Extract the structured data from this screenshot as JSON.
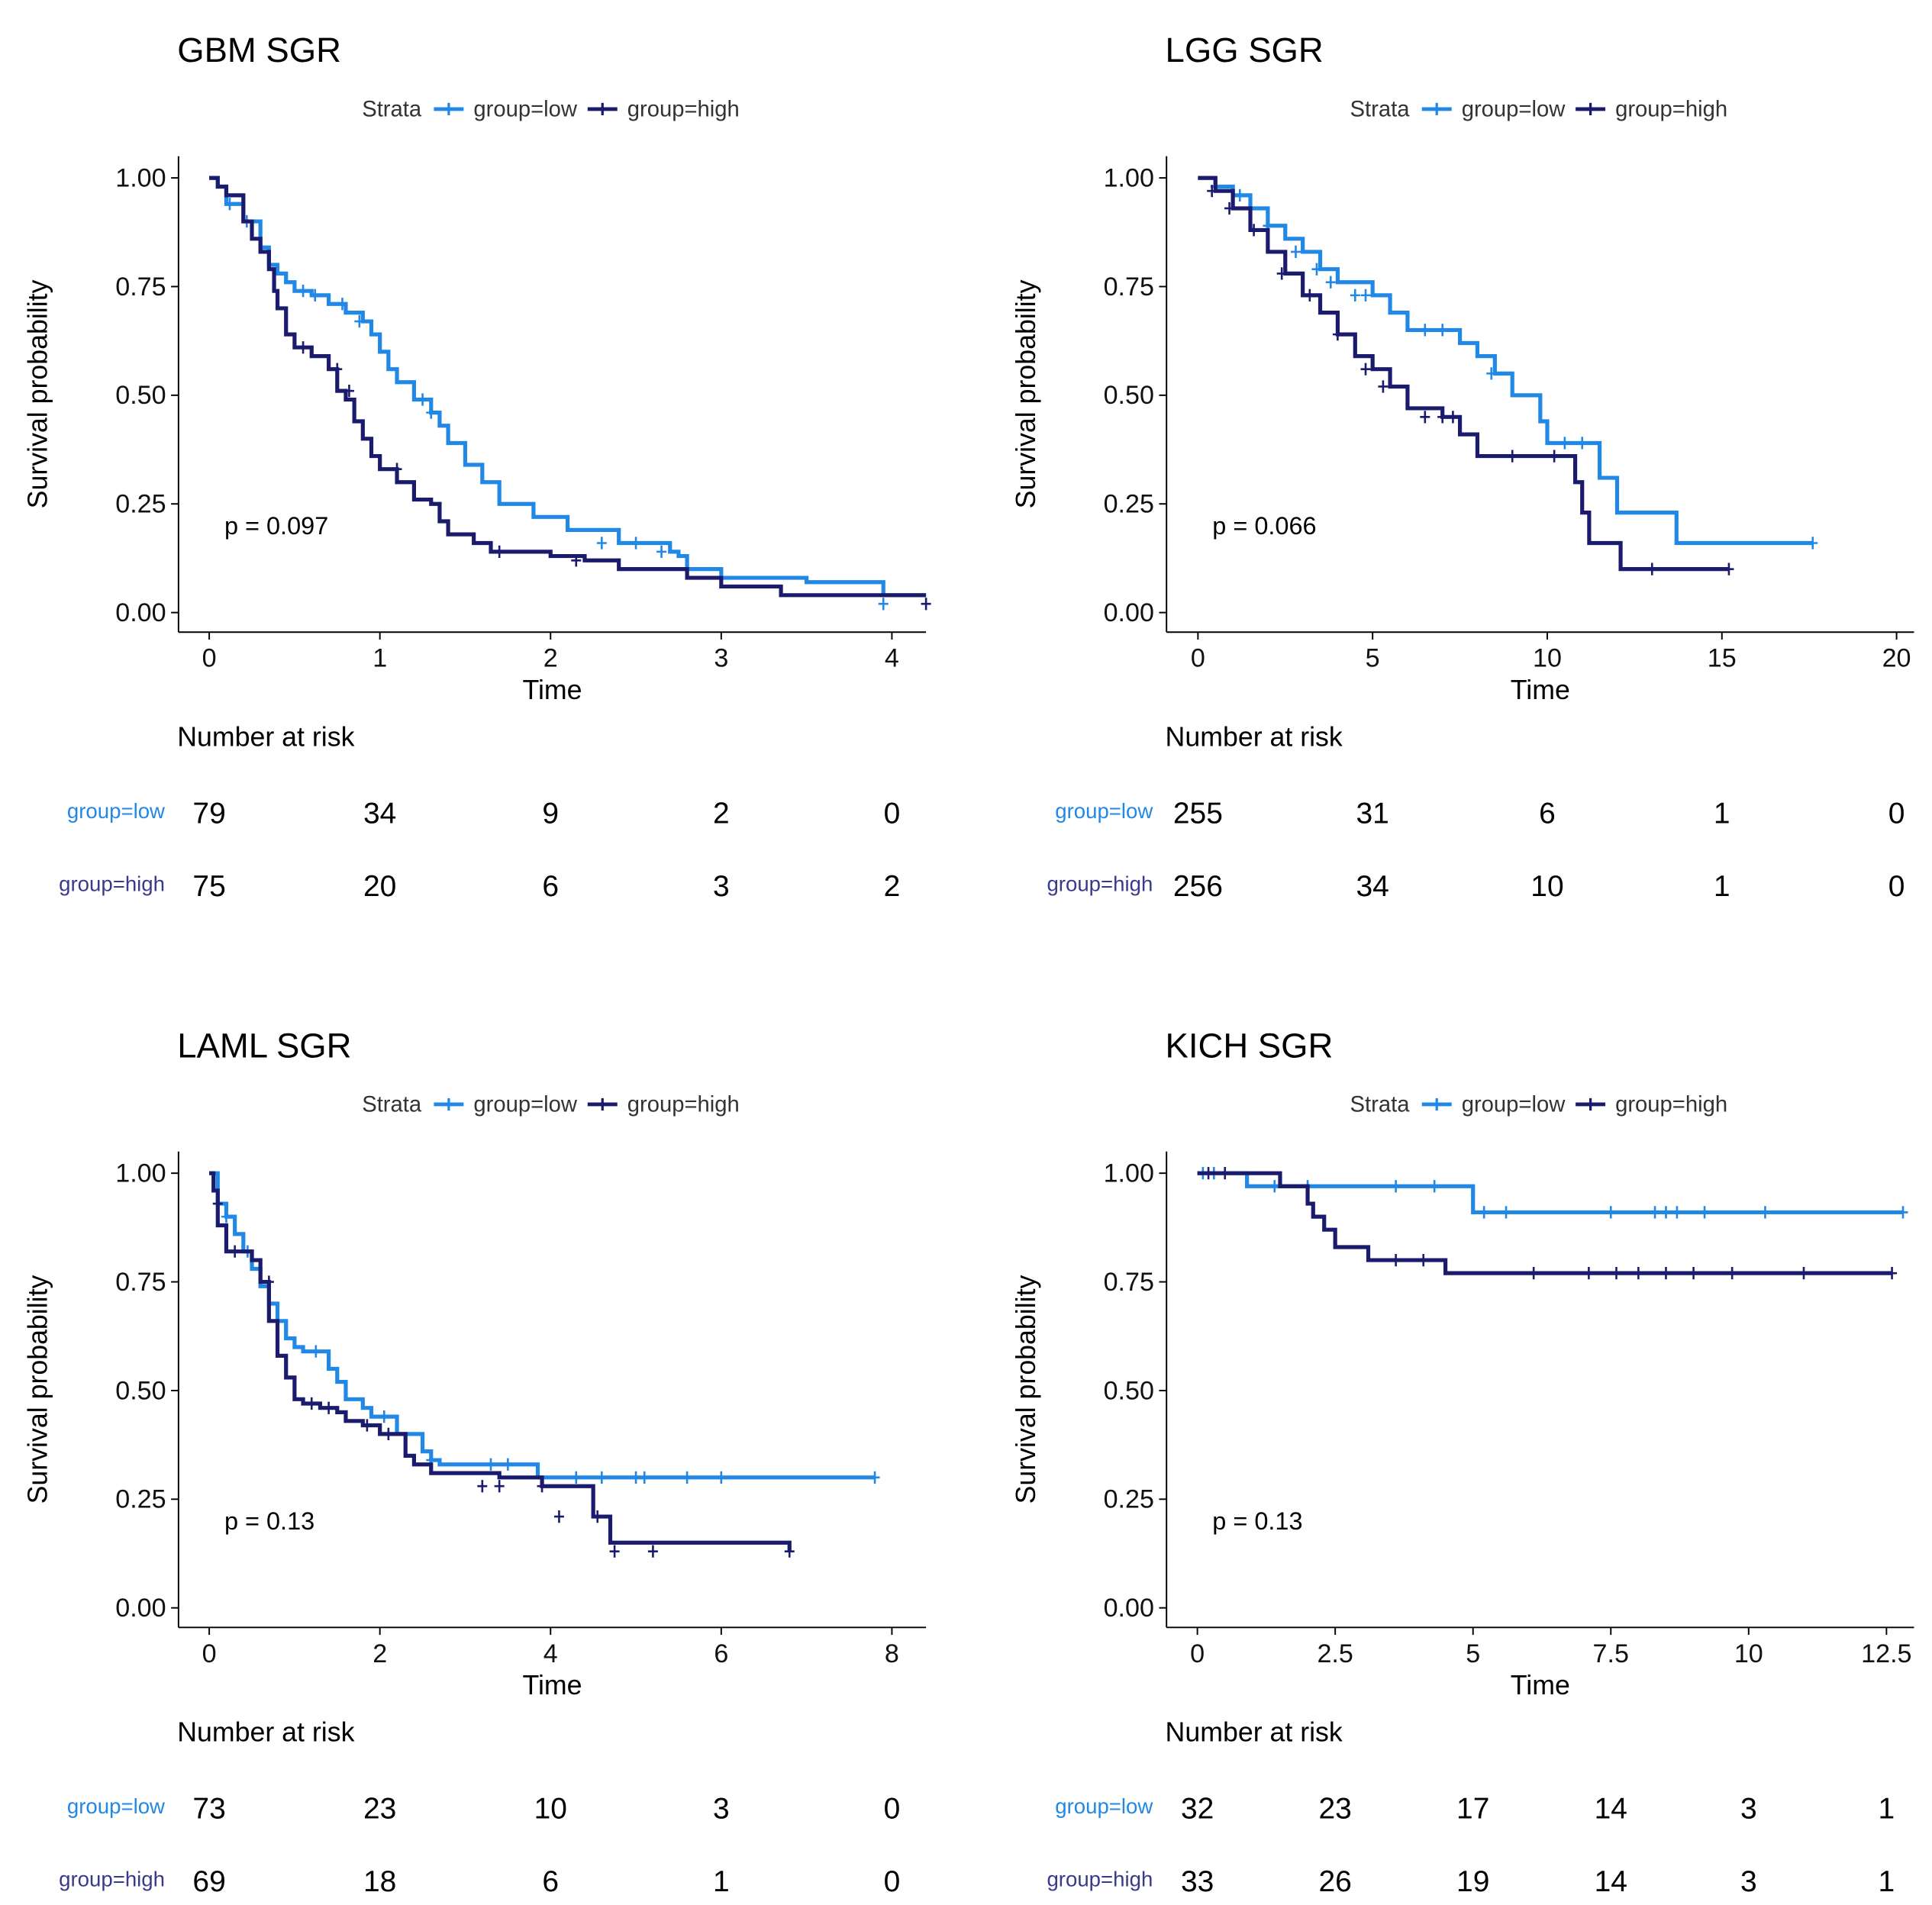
{
  "colors": {
    "low": "#2288E6",
    "high": "#1B1B6E",
    "axis": "#000000"
  },
  "legend": {
    "title": "Strata",
    "labels": [
      "group=low",
      "group=high"
    ]
  },
  "chart_data": [
    {
      "type": "line",
      "title": "GBM SGR",
      "xlabel": "Time",
      "ylabel": "Survival probability",
      "xlim": [
        -0.18,
        4.2
      ],
      "ylim": [
        -0.045,
        1.05
      ],
      "xticks": [
        0,
        1,
        2,
        3,
        4
      ],
      "yticks": [
        "0.00",
        "0.25",
        "0.50",
        "0.75",
        "1.00"
      ],
      "pvalue": "p = 0.097",
      "risk_table": {
        "title": "Number at risk",
        "times": [
          0,
          1,
          2,
          3,
          4
        ],
        "rows": [
          {
            "label": "group=low",
            "values": [
              "79",
              "34",
              "9",
              "2",
              "0"
            ]
          },
          {
            "label": "group=high",
            "values": [
              "75",
              "20",
              "6",
              "3",
              "2"
            ]
          }
        ]
      },
      "series": [
        {
          "name": "group=low",
          "x": [
            0,
            0.05,
            0.1,
            0.2,
            0.3,
            0.35,
            0.4,
            0.45,
            0.5,
            0.6,
            0.7,
            0.8,
            0.9,
            0.95,
            1.0,
            1.05,
            1.1,
            1.2,
            1.3,
            1.35,
            1.4,
            1.5,
            1.6,
            1.7,
            1.9,
            2.1,
            2.4,
            2.7,
            2.75,
            2.8,
            3.0,
            3.5,
            3.9,
            3.95,
            4.2
          ],
          "y": [
            1.0,
            0.98,
            0.94,
            0.9,
            0.84,
            0.8,
            0.78,
            0.76,
            0.74,
            0.73,
            0.71,
            0.69,
            0.67,
            0.64,
            0.6,
            0.56,
            0.53,
            0.49,
            0.46,
            0.43,
            0.39,
            0.34,
            0.3,
            0.25,
            0.22,
            0.19,
            0.16,
            0.14,
            0.13,
            0.1,
            0.08,
            0.07,
            0.07,
            0.04,
            0.04
          ],
          "censor_x": [
            0.12,
            0.22,
            0.55,
            0.62,
            0.78,
            0.88,
            1.25,
            1.3,
            2.3,
            2.5,
            2.65,
            3.95
          ],
          "censor_y": [
            0.94,
            0.9,
            0.74,
            0.73,
            0.71,
            0.67,
            0.49,
            0.46,
            0.16,
            0.16,
            0.14,
            0.02
          ]
        },
        {
          "name": "group=high",
          "x": [
            0,
            0.05,
            0.1,
            0.2,
            0.25,
            0.3,
            0.35,
            0.38,
            0.4,
            0.45,
            0.5,
            0.6,
            0.7,
            0.75,
            0.8,
            0.85,
            0.9,
            0.95,
            1.0,
            1.1,
            1.2,
            1.3,
            1.35,
            1.4,
            1.55,
            1.65,
            1.8,
            2.0,
            2.2,
            2.4,
            2.8,
            3.0,
            3.35,
            4.2
          ],
          "y": [
            1.0,
            0.98,
            0.96,
            0.9,
            0.86,
            0.83,
            0.79,
            0.74,
            0.7,
            0.64,
            0.61,
            0.59,
            0.56,
            0.51,
            0.49,
            0.44,
            0.4,
            0.36,
            0.33,
            0.3,
            0.26,
            0.25,
            0.21,
            0.18,
            0.16,
            0.14,
            0.14,
            0.13,
            0.12,
            0.1,
            0.08,
            0.06,
            0.04,
            0.04
          ],
          "censor_x": [
            0.55,
            0.75,
            0.82,
            1.1,
            1.7,
            2.15,
            4.2
          ],
          "censor_y": [
            0.61,
            0.56,
            0.51,
            0.33,
            0.14,
            0.12,
            0.02
          ]
        }
      ]
    },
    {
      "type": "line",
      "title": "LGG SGR",
      "xlabel": "Time",
      "ylabel": "Survival probability",
      "xlim": [
        -0.9,
        20.5
      ],
      "ylim": [
        -0.045,
        1.05
      ],
      "xticks": [
        0,
        5,
        10,
        15,
        20
      ],
      "yticks": [
        "0.00",
        "0.25",
        "0.50",
        "0.75",
        "1.00"
      ],
      "pvalue": "p = 0.066",
      "risk_table": {
        "title": "Number at risk",
        "times": [
          0,
          5,
          10,
          15,
          20
        ],
        "rows": [
          {
            "label": "group=low",
            "values": [
              "255",
              "31",
              "6",
              "1",
              "0"
            ]
          },
          {
            "label": "group=high",
            "values": [
              "256",
              "34",
              "10",
              "1",
              "0"
            ]
          }
        ]
      },
      "series": [
        {
          "name": "group=low",
          "x": [
            0,
            0.5,
            1.0,
            1.5,
            2.0,
            2.5,
            3.0,
            3.5,
            4.0,
            5.0,
            5.5,
            6.0,
            7.5,
            8.0,
            8.5,
            9.0,
            9.8,
            10.0,
            11.5,
            12.0,
            13.7,
            17.6
          ],
          "y": [
            1.0,
            0.98,
            0.96,
            0.93,
            0.89,
            0.86,
            0.83,
            0.79,
            0.76,
            0.73,
            0.69,
            0.65,
            0.62,
            0.59,
            0.55,
            0.5,
            0.44,
            0.39,
            0.31,
            0.23,
            0.16,
            0.16
          ],
          "censor_x": [
            0.5,
            1.2,
            2.0,
            2.8,
            3.4,
            3.8,
            4.5,
            4.8,
            6.5,
            7.0,
            8.4,
            10.5,
            11.0,
            17.6
          ],
          "censor_y": [
            0.98,
            0.96,
            0.89,
            0.83,
            0.79,
            0.76,
            0.73,
            0.73,
            0.65,
            0.65,
            0.55,
            0.39,
            0.39,
            0.16
          ]
        },
        {
          "name": "group=high",
          "x": [
            0,
            0.5,
            1.0,
            1.5,
            2.0,
            2.5,
            3.0,
            3.5,
            4.0,
            4.5,
            5.0,
            5.5,
            6.0,
            7.0,
            7.5,
            8.0,
            10.8,
            11.0,
            11.2,
            12.1,
            15.2
          ],
          "y": [
            1.0,
            0.97,
            0.93,
            0.88,
            0.83,
            0.78,
            0.73,
            0.69,
            0.64,
            0.59,
            0.56,
            0.52,
            0.47,
            0.45,
            0.41,
            0.36,
            0.3,
            0.23,
            0.16,
            0.1,
            0.1
          ],
          "censor_x": [
            0.4,
            0.9,
            1.6,
            2.4,
            3.2,
            4.0,
            4.8,
            5.3,
            6.5,
            7.0,
            7.3,
            9.0,
            10.2,
            13.0,
            15.2
          ],
          "censor_y": [
            0.97,
            0.93,
            0.88,
            0.78,
            0.73,
            0.64,
            0.56,
            0.52,
            0.45,
            0.45,
            0.45,
            0.36,
            0.36,
            0.1,
            0.1
          ]
        }
      ]
    },
    {
      "type": "line",
      "title": "LAML SGR",
      "xlabel": "Time",
      "ylabel": "Survival probability",
      "xlim": [
        -0.36,
        8.4
      ],
      "ylim": [
        -0.045,
        1.05
      ],
      "xticks": [
        0,
        2,
        4,
        6,
        8
      ],
      "yticks": [
        "0.00",
        "0.25",
        "0.50",
        "0.75",
        "1.00"
      ],
      "pvalue": "p = 0.13",
      "risk_table": {
        "title": "Number at risk",
        "times": [
          0,
          2,
          4,
          6,
          8
        ],
        "rows": [
          {
            "label": "group=low",
            "values": [
              "73",
              "23",
              "10",
              "3",
              "0"
            ]
          },
          {
            "label": "group=high",
            "values": [
              "69",
              "18",
              "6",
              "1",
              "0"
            ]
          }
        ]
      },
      "series": [
        {
          "name": "group=low",
          "x": [
            0,
            0.1,
            0.2,
            0.3,
            0.4,
            0.5,
            0.6,
            0.7,
            0.8,
            0.9,
            1.0,
            1.1,
            1.4,
            1.5,
            1.6,
            1.8,
            1.9,
            2.2,
            2.5,
            2.6,
            2.7,
            3.0,
            3.5,
            3.85,
            4.5,
            7.8
          ],
          "y": [
            1.0,
            0.93,
            0.9,
            0.86,
            0.82,
            0.78,
            0.74,
            0.7,
            0.66,
            0.62,
            0.6,
            0.59,
            0.55,
            0.52,
            0.48,
            0.46,
            0.44,
            0.4,
            0.36,
            0.34,
            0.33,
            0.33,
            0.33,
            0.3,
            0.3,
            0.3
          ],
          "censor_x": [
            0.2,
            0.45,
            0.8,
            1.25,
            2.05,
            2.6,
            3.3,
            3.5,
            4.3,
            4.6,
            5.0,
            5.1,
            5.6,
            6.0,
            7.8
          ],
          "censor_y": [
            0.9,
            0.82,
            0.66,
            0.59,
            0.44,
            0.34,
            0.33,
            0.33,
            0.3,
            0.3,
            0.3,
            0.3,
            0.3,
            0.3,
            0.3
          ]
        },
        {
          "name": "group=high",
          "x": [
            0,
            0.05,
            0.1,
            0.2,
            0.3,
            0.5,
            0.6,
            0.7,
            0.8,
            0.9,
            1.0,
            1.1,
            1.2,
            1.3,
            1.5,
            1.6,
            1.8,
            2.0,
            2.2,
            2.3,
            2.4,
            2.6,
            3.0,
            3.4,
            3.9,
            4.5,
            4.7,
            6.8
          ],
          "y": [
            1.0,
            0.96,
            0.88,
            0.82,
            0.82,
            0.8,
            0.75,
            0.66,
            0.58,
            0.53,
            0.48,
            0.47,
            0.47,
            0.46,
            0.45,
            0.43,
            0.42,
            0.4,
            0.4,
            0.35,
            0.33,
            0.31,
            0.31,
            0.3,
            0.28,
            0.21,
            0.15,
            0.13
          ],
          "censor_x": [
            0.1,
            0.3,
            0.7,
            1.2,
            1.4,
            1.85,
            2.1,
            3.2,
            3.4,
            3.9,
            4.1,
            4.55,
            4.75,
            5.2,
            6.8
          ],
          "censor_y": [
            0.93,
            0.82,
            0.75,
            0.47,
            0.46,
            0.42,
            0.4,
            0.28,
            0.28,
            0.28,
            0.21,
            0.21,
            0.13,
            0.13,
            0.13
          ]
        }
      ]
    },
    {
      "type": "line",
      "title": "KICH SGR",
      "xlabel": "Time",
      "ylabel": "Survival probability",
      "xlim": [
        -0.56,
        13.0
      ],
      "ylim": [
        -0.045,
        1.05
      ],
      "xticks": [
        0,
        2.5,
        5,
        7.5,
        10,
        12.5
      ],
      "xtick_labels": [
        "0",
        "2.5",
        "5",
        "7.5",
        "10",
        "12.5"
      ],
      "yticks": [
        "0.00",
        "0.25",
        "0.50",
        "0.75",
        "1.00"
      ],
      "pvalue": "p = 0.13",
      "risk_table": {
        "title": "Number at risk",
        "times": [
          0,
          2.5,
          5,
          7.5,
          10,
          12.5
        ],
        "rows": [
          {
            "label": "group=low",
            "values": [
              "32",
              "23",
              "17",
              "14",
              "3",
              "1"
            ]
          },
          {
            "label": "group=high",
            "values": [
              "33",
              "26",
              "19",
              "14",
              "3",
              "1"
            ]
          }
        ]
      },
      "series": [
        {
          "name": "group=low",
          "x": [
            0,
            0.9,
            4.9,
            5.0,
            12.8
          ],
          "y": [
            1.0,
            0.97,
            0.97,
            0.91,
            0.91
          ],
          "censor_x": [
            0.1,
            0.3,
            1.4,
            2.0,
            3.6,
            4.3,
            5.2,
            5.6,
            7.5,
            8.3,
            8.5,
            8.7,
            9.2,
            10.3,
            12.8
          ],
          "censor_y": [
            1.0,
            1.0,
            0.97,
            0.97,
            0.97,
            0.97,
            0.91,
            0.91,
            0.91,
            0.91,
            0.91,
            0.91,
            0.91,
            0.91,
            0.91
          ]
        },
        {
          "name": "group=high",
          "x": [
            0,
            1.5,
            1.9,
            2.0,
            2.1,
            2.3,
            2.5,
            3.1,
            4.3,
            4.5,
            12.6
          ],
          "y": [
            1.0,
            0.97,
            0.97,
            0.93,
            0.9,
            0.87,
            0.83,
            0.8,
            0.8,
            0.77,
            0.77
          ],
          "censor_x": [
            0.2,
            0.5,
            3.6,
            4.1,
            6.1,
            7.1,
            7.6,
            8.0,
            8.5,
            9.0,
            9.7,
            11.0,
            12.6
          ],
          "censor_y": [
            1.0,
            1.0,
            0.8,
            0.8,
            0.77,
            0.77,
            0.77,
            0.77,
            0.77,
            0.77,
            0.77,
            0.77,
            0.77
          ]
        }
      ]
    }
  ]
}
